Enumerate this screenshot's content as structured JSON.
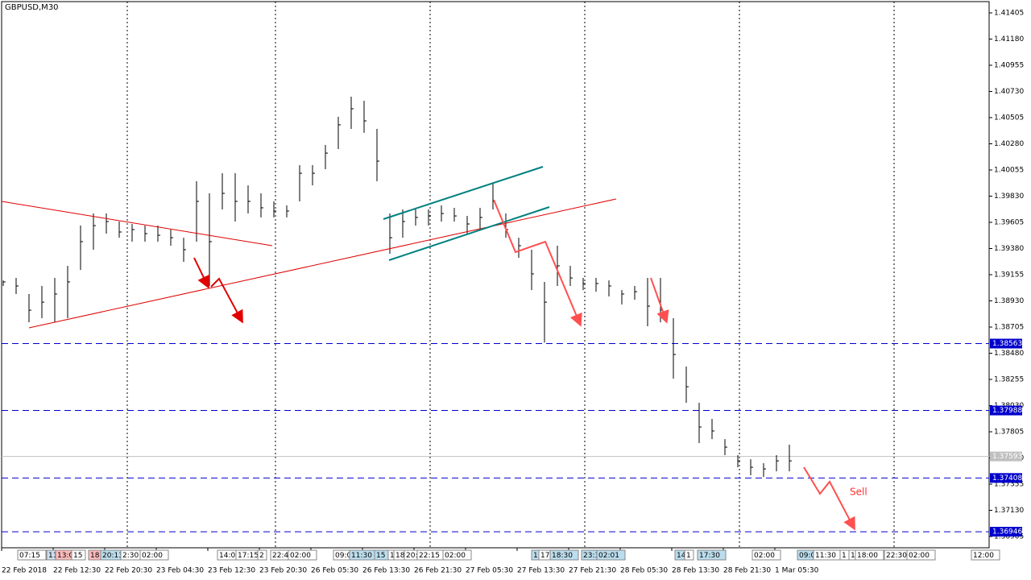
{
  "chart_data": {
    "type": "ohlc",
    "title": "GBPUSD,M30",
    "categories": [
      "22 Feb 2018",
      null,
      null,
      null,
      "22 Feb 12:30",
      null,
      null,
      null,
      "22 Feb 20:30",
      null,
      null,
      null,
      "23 Feb 04:30",
      null,
      null,
      null,
      "23 Feb 12:30",
      null,
      null,
      null,
      "23 Feb 20:30",
      null,
      null,
      null,
      "26 Feb 05:30",
      null,
      null,
      null,
      "26 Feb 13:30",
      null,
      null,
      null,
      "26 Feb 21:30",
      null,
      null,
      null,
      "27 Feb 05:30",
      null,
      null,
      null,
      "27 Feb 13:30",
      null,
      null,
      null,
      "27 Feb 21:30",
      null,
      null,
      null,
      "28 Feb 05:30",
      null,
      null,
      null,
      "28 Feb 13:30",
      null,
      null,
      null,
      "28 Feb 21:30",
      null,
      null,
      null,
      "1 Mar 05:30",
      null
    ],
    "high": [
      1.39106,
      1.39127,
      1.38989,
      1.39058,
      1.39127,
      1.39231,
      1.39577,
      1.39681,
      1.39681,
      1.39612,
      1.39591,
      1.39577,
      1.39577,
      1.39543,
      1.39473,
      1.39958,
      1.39854,
      1.40027,
      1.40027,
      1.39923,
      1.39854,
      1.39785,
      1.3975,
      1.40097,
      1.40097,
      1.4027,
      1.40512,
      1.40685,
      1.4065,
      1.40408,
      1.39681,
      1.39716,
      1.39716,
      1.39716,
      1.3975,
      1.3973,
      1.3966,
      1.3973,
      1.39937,
      1.39681,
      1.39473,
      1.3937,
      1.39093,
      1.39404,
      1.39231,
      1.39127,
      1.39127,
      1.39106,
      1.39023,
      1.39058,
      1.39127,
      1.39127,
      1.38781,
      1.38366,
      1.38054,
      1.37916,
      1.37742,
      1.37604,
      1.37569,
      1.37535,
      1.37604,
      1.37694
    ],
    "low": [
      1.39058,
      1.38989,
      1.38746,
      1.38781,
      1.38746,
      1.38781,
      1.39196,
      1.3937,
      1.39508,
      1.39473,
      1.39439,
      1.39439,
      1.39439,
      1.39404,
      1.39266,
      1.39439,
      1.39058,
      1.39716,
      1.39612,
      1.39681,
      1.39647,
      1.39647,
      1.39647,
      1.39785,
      1.39923,
      1.40062,
      1.40235,
      1.40408,
      1.40374,
      1.39958,
      1.39335,
      1.39473,
      1.39577,
      1.39577,
      1.39612,
      1.39612,
      1.39508,
      1.39543,
      1.39716,
      1.39473,
      1.393,
      1.39023,
      1.38573,
      1.39058,
      1.39058,
      1.39023,
      1.39009,
      1.38968,
      1.38899,
      1.3894,
      1.38712,
      1.38746,
      1.38262,
      1.38054,
      1.37708,
      1.37742,
      1.37604,
      1.375,
      1.37431,
      1.37417,
      1.37465,
      1.37465
    ],
    "close": [
      1.39093,
      1.39058,
      1.3885,
      1.38919,
      1.38989,
      1.39093,
      1.39439,
      1.39577,
      1.39612,
      1.39522,
      1.39543,
      1.39508,
      1.39494,
      1.39473,
      1.3937,
      1.39785,
      1.39439,
      1.39854,
      1.39785,
      1.39785,
      1.3973,
      1.39702,
      1.39702,
      1.40027,
      1.40027,
      1.402,
      1.40443,
      1.40581,
      1.40477,
      1.40131,
      1.39473,
      1.39612,
      1.39647,
      1.3966,
      1.39681,
      1.3966,
      1.39591,
      1.39647,
      1.39785,
      1.39543,
      1.39404,
      1.39162,
      1.38919,
      1.39231,
      1.39127,
      1.39079,
      1.39079,
      1.39058,
      1.38989,
      1.39009,
      1.38885,
      1.3885,
      1.38469,
      1.38192,
      1.37846,
      1.37812,
      1.37673,
      1.37555,
      1.375,
      1.37486,
      1.37555,
      1.37555
    ],
    "color": "#000000",
    "ylim": [
      1.36808,
      1.41502
    ],
    "yticks": [
      {
        "value": 1.41405,
        "label": "1.41405"
      },
      {
        "value": 1.4118,
        "label": "1.41180"
      },
      {
        "value": 1.40955,
        "label": "1.40955"
      },
      {
        "value": 1.4073,
        "label": "1.40730"
      },
      {
        "value": 1.40505,
        "label": "1.40505"
      },
      {
        "value": 1.4028,
        "label": "1.40280"
      },
      {
        "value": 1.40055,
        "label": "1.40055"
      },
      {
        "value": 1.3983,
        "label": "1.39830"
      },
      {
        "value": 1.39605,
        "label": "1.39605"
      },
      {
        "value": 1.3938,
        "label": "1.39380"
      },
      {
        "value": 1.39155,
        "label": "1.39155"
      },
      {
        "value": 1.3893,
        "label": "1.38930"
      },
      {
        "value": 1.38705,
        "label": "1.38705"
      },
      {
        "value": 1.3848,
        "label": "1.38480"
      },
      {
        "value": 1.38255,
        "label": "1.38255"
      },
      {
        "value": 1.3803,
        "label": "1.38030"
      },
      {
        "value": 1.37805,
        "label": "1.37805"
      },
      {
        "value": 1.3758,
        "label": "1.37580"
      },
      {
        "value": 1.37355,
        "label": "1.37355"
      },
      {
        "value": 1.3713,
        "label": "1.37130"
      },
      {
        "value": 1.36905,
        "label": "1.36905"
      }
    ],
    "levels": [
      1.38563,
      1.37988,
      1.37408,
      1.36946
    ],
    "level_color": "#0000cc",
    "price_line": 1.37593,
    "price_line_color": "#c0c0c0",
    "annotations": [
      "Sell"
    ],
    "session_labels": [
      "07:15",
      "11",
      "13:0",
      "15",
      "18:",
      "20:13",
      "2:30",
      "02:00",
      "14:0",
      "17:15",
      "2",
      "22:4",
      "02:00",
      "09:0",
      "11:30",
      "15",
      "1",
      "18",
      "20:",
      "22:15",
      "02:00",
      "1",
      "17",
      "18:30",
      "23:3",
      "02:01",
      "14",
      "1",
      "17:30",
      "02:00",
      "09:0",
      "11:30",
      "1",
      "1",
      "18:00",
      "22:30",
      "02:00",
      "12:00"
    ]
  }
}
